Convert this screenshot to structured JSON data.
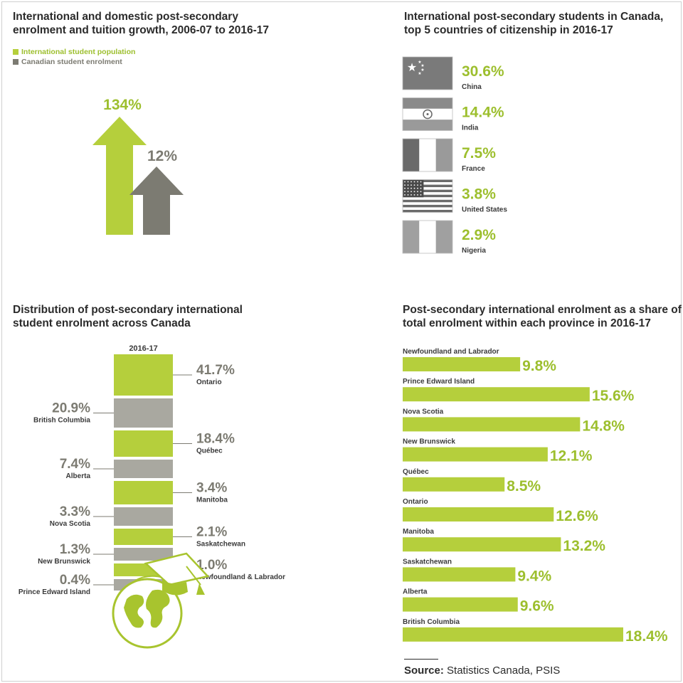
{
  "panel1": {
    "title_line1": "International and domestic post-secondary",
    "title_line2": "enrolment and tuition growth, 2006-07 to 2016-17",
    "legend": [
      {
        "label": "International student population",
        "color": "#b5cf3c"
      },
      {
        "label": "Canadian student enrolment",
        "color": "#7c7b72"
      }
    ],
    "chart_data": {
      "type": "bar",
      "categories": [
        "International student population",
        "Canadian student enrolment"
      ],
      "values": [
        134,
        12
      ],
      "value_labels": [
        "134%",
        "12%"
      ],
      "title": "International and domestic post-secondary enrolment and tuition growth, 2006-07 to 2016-17"
    }
  },
  "panel2": {
    "title_line1": "International post-secondary students in Canada,",
    "title_line2": "top 5 countries of citizenship in 2016-17",
    "countries": [
      {
        "name": "China",
        "value": "30.6%",
        "flag": "china-flag"
      },
      {
        "name": "India",
        "value": "14.4%",
        "flag": "india-flag"
      },
      {
        "name": "France",
        "value": "7.5%",
        "flag": "france-flag"
      },
      {
        "name": "United States",
        "value": "3.8%",
        "flag": "usa-flag"
      },
      {
        "name": "Nigeria",
        "value": "2.9%",
        "flag": "nigeria-flag"
      }
    ],
    "chart_data": {
      "type": "table",
      "categories": [
        "China",
        "India",
        "France",
        "United States",
        "Nigeria"
      ],
      "values": [
        30.6,
        14.4,
        7.5,
        3.8,
        2.9
      ],
      "unit": "%",
      "title": "International post-secondary students in Canada, top 5 countries of citizenship in 2016-17"
    }
  },
  "panel3": {
    "title_line1": "Distribution of post-secondary international",
    "title_line2": "student enrolment across Canada",
    "column_label": "2016-17",
    "chart_data": {
      "type": "bar",
      "stacked": true,
      "categories": [
        "Ontario",
        "British Columbia",
        "Québec",
        "Alberta",
        "Manitoba",
        "Nova Scotia",
        "Saskatchewan",
        "New Brunswick",
        "Newfoundland & Labrador",
        "Prince Edward Island"
      ],
      "values": [
        41.7,
        20.9,
        18.4,
        7.4,
        3.4,
        3.3,
        2.1,
        1.3,
        1.0,
        0.4
      ],
      "value_labels": [
        "41.7%",
        "20.9%",
        "18.4%",
        "7.4%",
        "3.4%",
        "3.3%",
        "2.1%",
        "1.3%",
        "1.0%",
        "0.4%"
      ],
      "label_side": [
        "right",
        "left",
        "right",
        "left",
        "right",
        "left",
        "right",
        "left",
        "right",
        "left"
      ],
      "colors": [
        "#b5cf3c",
        "#a9a8a0"
      ],
      "title": "Distribution of post-secondary international student enrolment across Canada"
    }
  },
  "panel4": {
    "title_line1": "Post-secondary international enrolment as a share of",
    "title_line2": "total enrolment within each province in 2016-17",
    "chart_data": {
      "type": "bar",
      "orientation": "horizontal",
      "categories": [
        "Newfoundland and Labrador",
        "Prince Edward Island",
        "Nova Scotia",
        "New Brunswick",
        "Québec",
        "Ontario",
        "Manitoba",
        "Saskatchewan",
        "Alberta",
        "British Columbia"
      ],
      "values": [
        9.8,
        15.6,
        14.8,
        12.1,
        8.5,
        12.6,
        13.2,
        9.4,
        9.6,
        18.4
      ],
      "value_labels": [
        "9.8%",
        "15.6%",
        "14.8%",
        "12.1%",
        "8.5%",
        "12.6%",
        "13.2%",
        "9.4%",
        "9.6%",
        "18.4%"
      ],
      "xlim": [
        0,
        20
      ],
      "color": "#b5cf3c",
      "title": "Post-secondary international enrolment as a share of total enrolment within each province in 2016-17"
    }
  },
  "source": {
    "label": "Source:",
    "text": " Statistics Canada, PSIS"
  }
}
